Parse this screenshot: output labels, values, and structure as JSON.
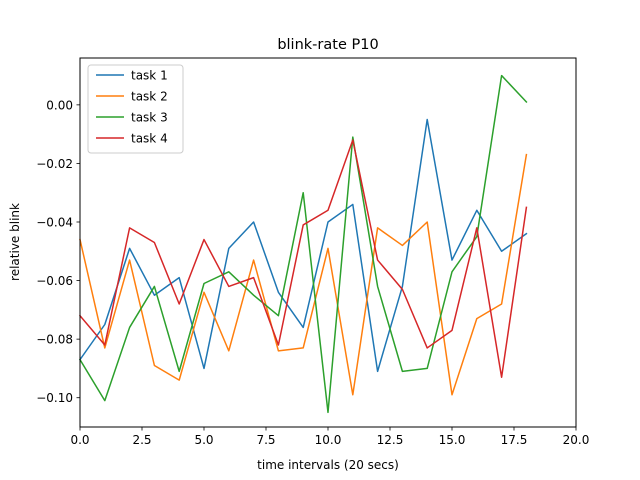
{
  "chart_data": {
    "type": "line",
    "title": "blink-rate P10",
    "xlabel": "time intervals (20 secs)",
    "ylabel": "relative blink",
    "xlim": [
      0,
      20
    ],
    "ylim": [
      -0.11,
      0.016
    ],
    "xticks": [
      0,
      2.5,
      5,
      7.5,
      10,
      12.5,
      15,
      17.5,
      20
    ],
    "xtick_labels": [
      "0.0",
      "2.5",
      "5.0",
      "7.5",
      "10.0",
      "12.5",
      "15.0",
      "17.5",
      "20.0"
    ],
    "yticks": [
      -0.1,
      -0.08,
      -0.06,
      -0.04,
      -0.02,
      0.0
    ],
    "ytick_labels": [
      "−0.10",
      "−0.08",
      "−0.06",
      "−0.04",
      "−0.02",
      "0.00"
    ],
    "grid": false,
    "legend_position": "top-left",
    "x": [
      0,
      1,
      2,
      3,
      4,
      5,
      6,
      7,
      8,
      9,
      10,
      11,
      12,
      13,
      14,
      15,
      16,
      17,
      18
    ],
    "series": [
      {
        "name": "task 1",
        "color": "#1f77b4",
        "values": [
          -0.087,
          -0.075,
          -0.049,
          -0.065,
          -0.059,
          -0.09,
          -0.049,
          -0.04,
          -0.064,
          -0.076,
          -0.04,
          -0.034,
          -0.091,
          -0.062,
          -0.005,
          -0.053,
          -0.036,
          -0.05,
          -0.044
        ]
      },
      {
        "name": "task 2",
        "color": "#ff7f0e",
        "values": [
          -0.046,
          -0.083,
          -0.053,
          -0.089,
          -0.094,
          -0.064,
          -0.084,
          -0.053,
          -0.084,
          -0.083,
          -0.049,
          -0.099,
          -0.042,
          -0.048,
          -0.04,
          -0.099,
          -0.073,
          -0.068,
          -0.017
        ]
      },
      {
        "name": "task 3",
        "color": "#2ca02c",
        "values": [
          -0.087,
          -0.101,
          -0.076,
          -0.062,
          -0.091,
          -0.061,
          -0.057,
          -0.065,
          -0.072,
          -0.03,
          -0.105,
          -0.011,
          -0.062,
          -0.091,
          -0.09,
          -0.057,
          -0.045,
          0.01,
          0.001
        ]
      },
      {
        "name": "task 4",
        "color": "#d62728",
        "values": [
          -0.072,
          -0.082,
          -0.042,
          -0.047,
          -0.068,
          -0.046,
          -0.062,
          -0.059,
          -0.082,
          -0.041,
          -0.036,
          -0.012,
          -0.053,
          -0.063,
          -0.083,
          -0.077,
          -0.042,
          -0.093,
          -0.035
        ]
      }
    ]
  }
}
